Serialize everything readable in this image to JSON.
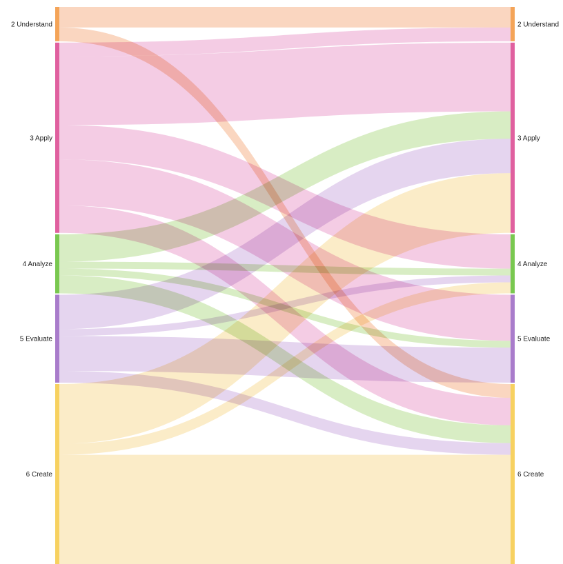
{
  "nodes": [
    {
      "id": "understand",
      "label": "2 Understand",
      "color": "#F4A458",
      "flow_color": "#F5B58C"
    },
    {
      "id": "apply",
      "label": "3 Apply",
      "color": "#E0609F",
      "flow_color": "#EBA3CE"
    },
    {
      "id": "analyze",
      "label": "4 Analyze",
      "color": "#79C850",
      "flow_color": "#B8DE94"
    },
    {
      "id": "evaluate",
      "label": "5 Evaluate",
      "color": "#A97CCB",
      "flow_color": "#CFB2E2"
    },
    {
      "id": "create",
      "label": "6 Create",
      "color": "#F7D160",
      "flow_color": "#F8DD9A"
    }
  ],
  "chart_data": {
    "type": "sankey",
    "node_order": [
      "understand",
      "apply",
      "analyze",
      "evaluate",
      "create"
    ],
    "node_totals": [
      50,
      277,
      86,
      128,
      262
    ],
    "links": [
      {
        "source": "understand",
        "target": "understand",
        "value": 30
      },
      {
        "source": "understand",
        "target": "create",
        "value": 20
      },
      {
        "source": "apply",
        "target": "understand",
        "value": 20
      },
      {
        "source": "apply",
        "target": "apply",
        "value": 100
      },
      {
        "source": "apply",
        "target": "analyze",
        "value": 50
      },
      {
        "source": "apply",
        "target": "evaluate",
        "value": 67
      },
      {
        "source": "apply",
        "target": "create",
        "value": 40
      },
      {
        "source": "analyze",
        "target": "apply",
        "value": 40
      },
      {
        "source": "analyze",
        "target": "analyze",
        "value": 10
      },
      {
        "source": "analyze",
        "target": "evaluate",
        "value": 10
      },
      {
        "source": "analyze",
        "target": "create",
        "value": 26
      },
      {
        "source": "evaluate",
        "target": "apply",
        "value": 50
      },
      {
        "source": "evaluate",
        "target": "analyze",
        "value": 10
      },
      {
        "source": "evaluate",
        "target": "evaluate",
        "value": 51
      },
      {
        "source": "evaluate",
        "target": "create",
        "value": 17
      },
      {
        "source": "create",
        "target": "apply",
        "value": 87
      },
      {
        "source": "create",
        "target": "analyze",
        "value": 16
      },
      {
        "source": "create",
        "target": "create",
        "value": 159
      }
    ]
  }
}
